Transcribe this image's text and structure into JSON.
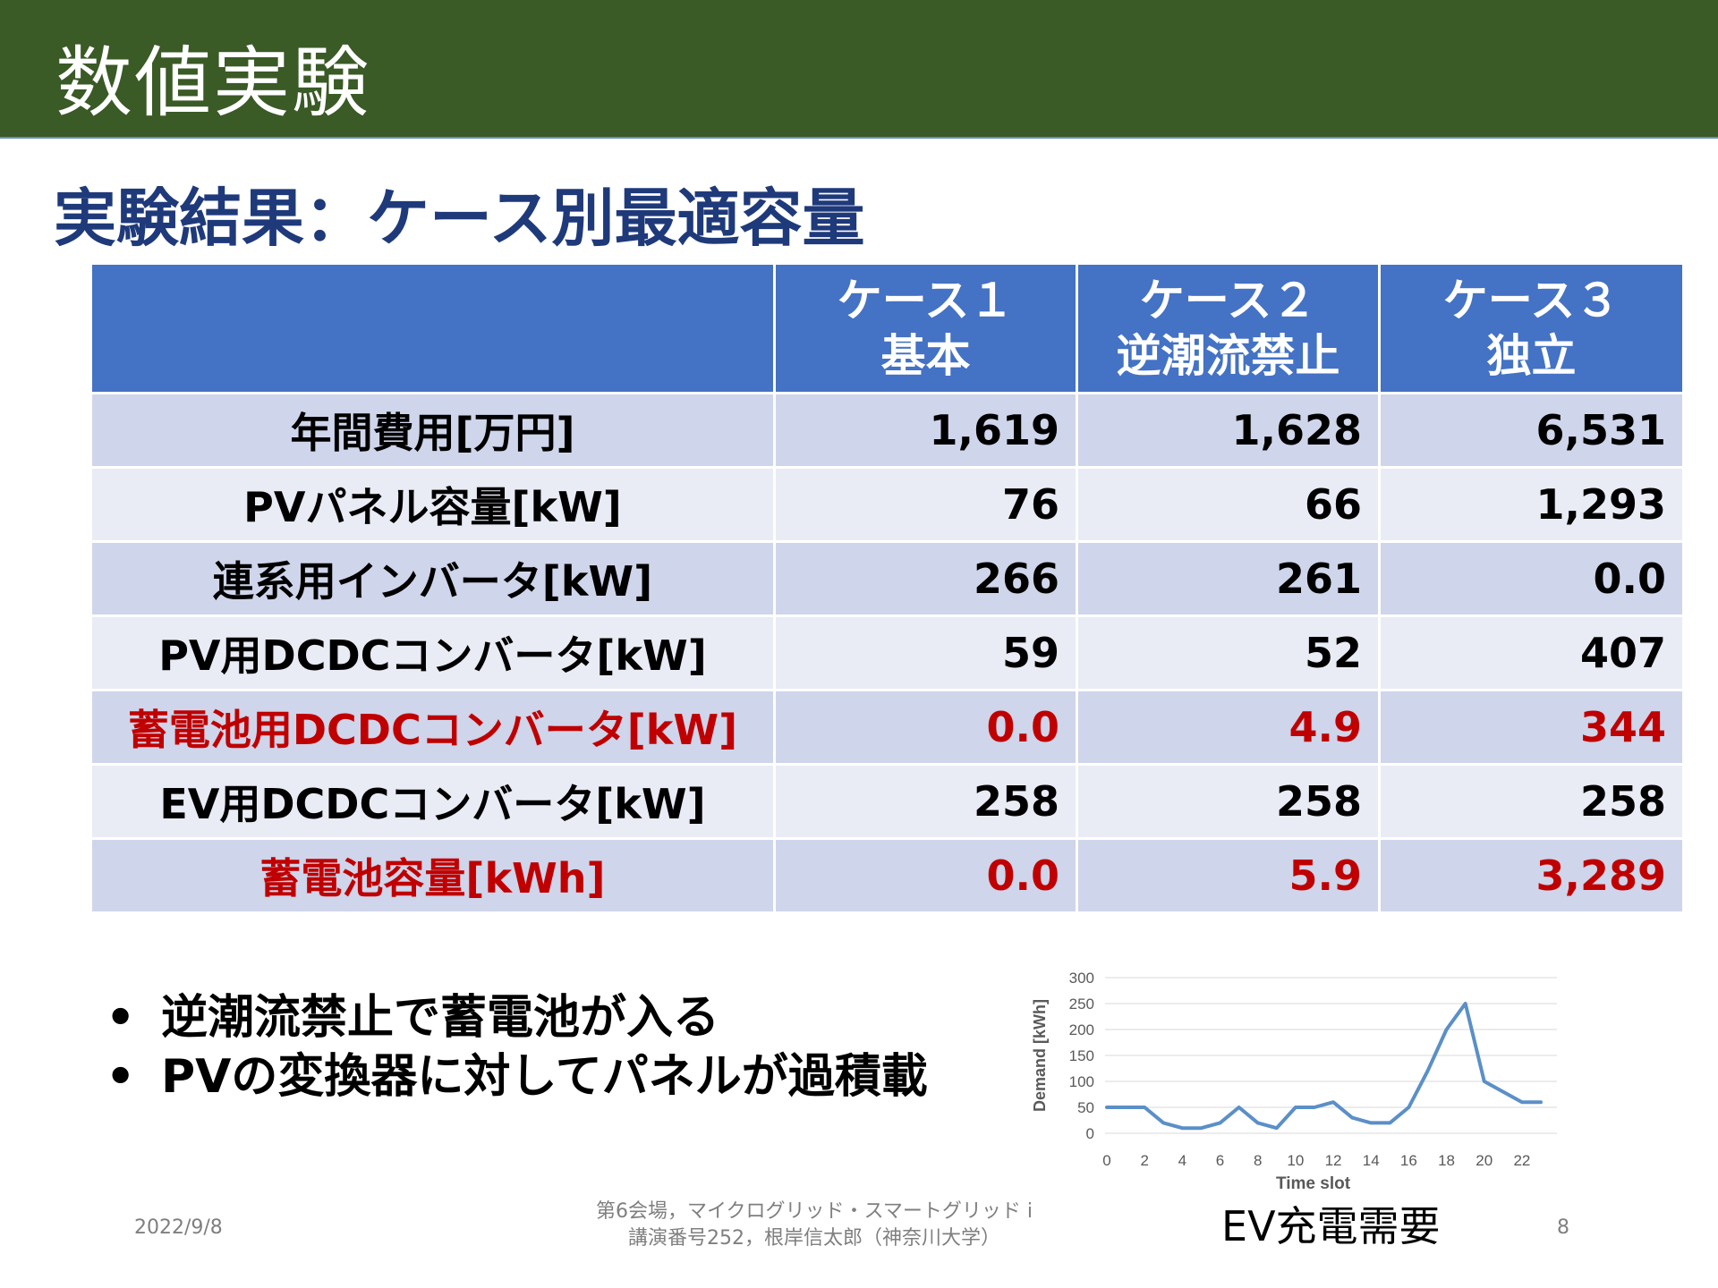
{
  "header": {
    "title": "数値実験"
  },
  "subtitle": "実験結果：ケース別最適容量",
  "table": {
    "header_corner": "",
    "columns": [
      {
        "line1": "ケース１",
        "line2": "基本"
      },
      {
        "line1": "ケース２",
        "line2": "逆潮流禁止"
      },
      {
        "line1": "ケース３",
        "line2": "独立"
      }
    ],
    "rows": [
      {
        "label": "年間費用[万円]",
        "values": [
          "1,619",
          "1,628",
          "6,531"
        ],
        "highlight": false
      },
      {
        "label": "PVパネル容量[kW]",
        "values": [
          "76",
          "66",
          "1,293"
        ],
        "highlight": false
      },
      {
        "label": "連系用インバータ[kW]",
        "values": [
          "266",
          "261",
          "0.0"
        ],
        "highlight": false
      },
      {
        "label": "PV用DCDCコンバータ[kW]",
        "values": [
          "59",
          "52",
          "407"
        ],
        "highlight": false
      },
      {
        "label": "蓄電池用DCDCコンバータ[kW]",
        "values": [
          "0.0",
          "4.9",
          "344"
        ],
        "highlight": true
      },
      {
        "label": "EV用DCDCコンバータ[kW]",
        "values": [
          "258",
          "258",
          "258"
        ],
        "highlight": false
      },
      {
        "label": "蓄電池容量[kWh]",
        "values": [
          "0.0",
          "5.9",
          "3,289"
        ],
        "highlight": true
      }
    ]
  },
  "bullets": [
    "逆潮流禁止で蓄電池が入る",
    "PVの変換器に対してパネルが過積載"
  ],
  "chart_data": {
    "type": "line",
    "title": "",
    "xlabel": "Time slot",
    "ylabel": "Demand [kWh]",
    "x": [
      0,
      1,
      2,
      3,
      4,
      5,
      6,
      7,
      8,
      9,
      10,
      11,
      12,
      13,
      14,
      15,
      16,
      17,
      18,
      19,
      20,
      21,
      22,
      23
    ],
    "series": [
      {
        "values": [
          50,
          50,
          50,
          20,
          10,
          10,
          20,
          50,
          20,
          10,
          50,
          50,
          60,
          30,
          20,
          20,
          50,
          120,
          200,
          250,
          100,
          80,
          60,
          60
        ]
      }
    ],
    "xticks": [
      "0",
      "2",
      "4",
      "6",
      "8",
      "10",
      "12",
      "14",
      "16",
      "18",
      "20",
      "22"
    ],
    "yticks": [
      "0",
      "50",
      "100",
      "150",
      "200",
      "250",
      "300"
    ],
    "ylim": [
      0,
      300
    ],
    "grid": true,
    "line_color": "#5b8fc7",
    "caption": "EV充電需要"
  },
  "footer": {
    "date": "2022/9/8",
    "venue_line1": "第6会場，マイクログリッド・スマートグリッド i",
    "venue_line2": "講演番号252，根岸信太郎（神奈川大学）",
    "page": "8"
  }
}
